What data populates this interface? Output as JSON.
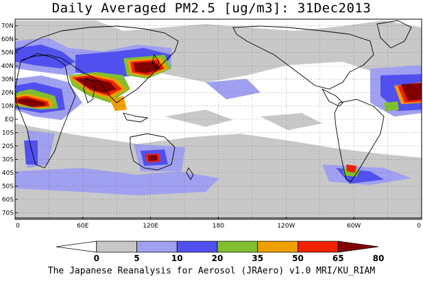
{
  "title": "Daily Averaged PM2.5 [ug/m3]: 31Dec2013",
  "footer": "The Japanese Reanalysis for Aerosol (JRAero) v1.0 MRI/KU_RIAM",
  "map": {
    "projection": "equirectangular, centered 180",
    "lon_range": [
      0,
      360
    ],
    "lat_range": [
      -75,
      75
    ],
    "lat_labels": [
      "70N",
      "60N",
      "50N",
      "40N",
      "30N",
      "20N",
      "10N",
      "EQ",
      "10S",
      "20S",
      "30S",
      "40S",
      "50S",
      "60S",
      "70S"
    ],
    "lon_labels": [
      "0",
      "60E",
      "120E",
      "180",
      "120W",
      "60W",
      "0"
    ],
    "grid": "dotted"
  },
  "colorbar": {
    "levels": [
      "0",
      "5",
      "10",
      "20",
      "35",
      "50",
      "65",
      "80"
    ],
    "colors": [
      "#ffffff",
      "#c8c8c8",
      "#a0a0f0",
      "#5050f0",
      "#80c030",
      "#f0a000",
      "#f02000",
      "#800000"
    ]
  },
  "colors": {
    "land": "#ffffff",
    "level_5": "#c8c8c8",
    "level_10": "#a0a0f0",
    "level_20": "#5050f0",
    "level_35": "#80c030",
    "level_50": "#f0a000",
    "level_65": "#f02000",
    "level_80": "#800000"
  }
}
